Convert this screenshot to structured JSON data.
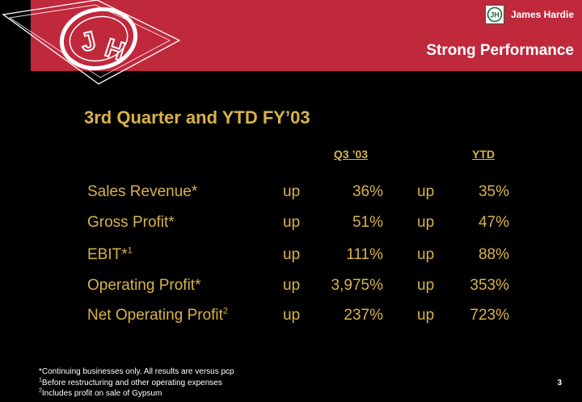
{
  "header": {
    "brand_name": "James Hardie",
    "logo_letters": "JH",
    "title": "Strong Performance"
  },
  "slide": {
    "title": "3rd Quarter and YTD FY’03",
    "columns": {
      "q3": "Q3 ’03",
      "ytd": "YTD"
    },
    "rows": [
      {
        "metric": "Sales Revenue*",
        "sup": "",
        "dir_q3": "up",
        "q3": "36%",
        "dir_ytd": "up",
        "ytd": "35%"
      },
      {
        "metric": "Gross Profit*",
        "sup": "",
        "dir_q3": "up",
        "q3": "51%",
        "dir_ytd": "up",
        "ytd": "47%"
      },
      {
        "metric": "EBIT*",
        "sup": "1",
        "dir_q3": "up",
        "q3": "111%",
        "dir_ytd": "up",
        "ytd": "88%"
      },
      {
        "metric": "Operating Profit*",
        "sup": "",
        "dir_q3": "up",
        "q3": "3,975%",
        "dir_ytd": "up",
        "ytd": "353%"
      },
      {
        "metric": "Net Operating Profit",
        "sup": "2",
        "dir_q3": "up",
        "q3": "237%",
        "dir_ytd": "up",
        "ytd": "723%"
      }
    ]
  },
  "footnotes": {
    "note_star": "*Continuing businesses only.  All results are versus pcp",
    "note_1_marker": "1",
    "note_1": "Before restructuring and other operating expenses",
    "note_2_marker": "2",
    "note_2": "Includes profit on sale of Gypsum"
  },
  "page_number": "3",
  "colors": {
    "banner": "#c0283c",
    "text_gold": "#d8b24a",
    "background": "#000000"
  }
}
